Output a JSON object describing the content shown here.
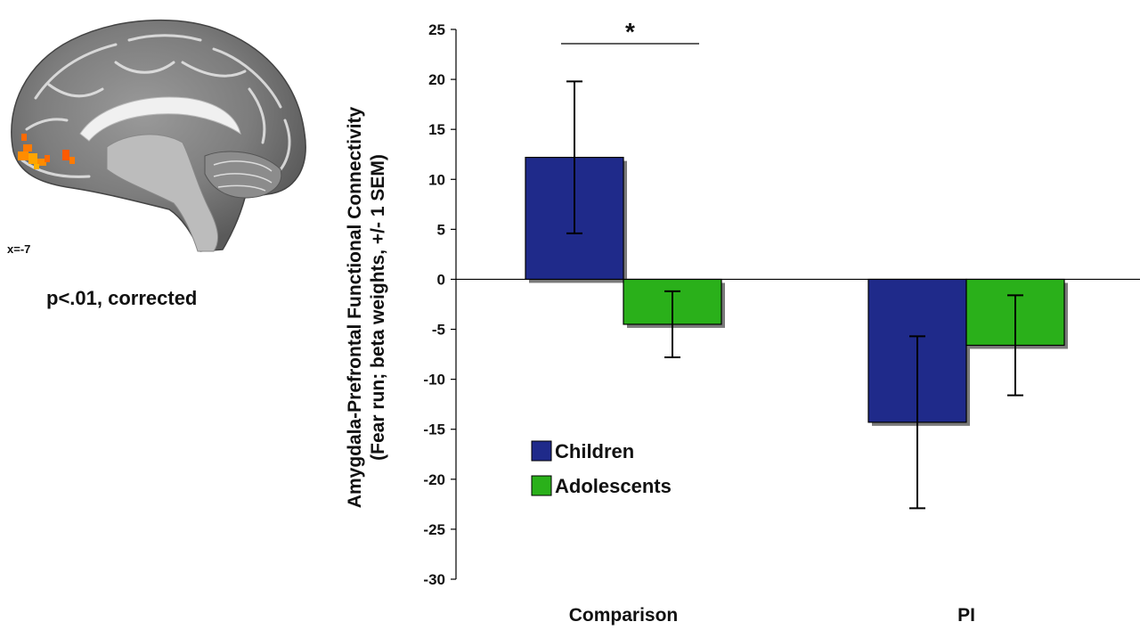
{
  "brain_panel": {
    "slice_label": "x=-7",
    "threshold_caption": "p<.01, corrected"
  },
  "chart_data": {
    "type": "bar",
    "ylabel_line1": "Amygdala-Prefrontal Functional Connectivity",
    "ylabel_line2": "(Fear run; beta weights, +/- 1 SEM)",
    "categories": [
      "Comparison",
      "PI"
    ],
    "ylim": [
      -30,
      25
    ],
    "yticks": [
      25,
      20,
      15,
      10,
      5,
      0,
      -5,
      -10,
      -15,
      -20,
      -25,
      -30
    ],
    "series": [
      {
        "name": "Children",
        "color": "#1f2a8a",
        "values": [
          12.2,
          -14.3
        ],
        "error": [
          7.6,
          8.6
        ]
      },
      {
        "name": "Adolescents",
        "color": "#2ab01a",
        "values": [
          -4.5,
          -6.6
        ],
        "error": [
          3.3,
          5.0
        ]
      }
    ],
    "significance": {
      "between_categories_index": 0,
      "label": "*"
    },
    "legend_position": "lower-left",
    "grid": false
  }
}
